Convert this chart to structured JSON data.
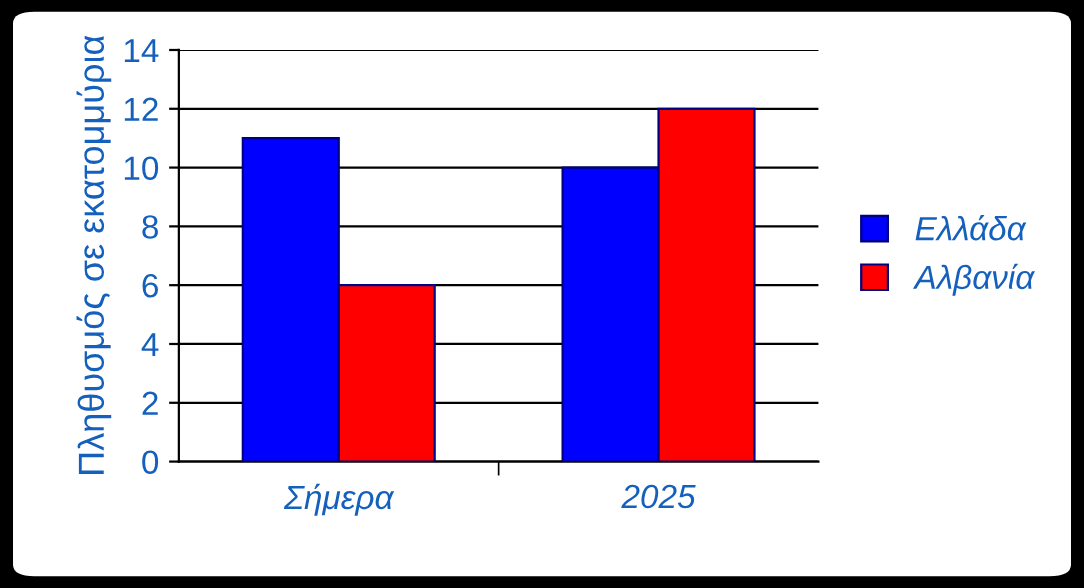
{
  "chart_data": {
    "type": "bar",
    "ylabel": "Πληθυσμός σε εκατομμύρια",
    "categories": [
      "Σήμερα",
      "2025"
    ],
    "series": [
      {
        "name": "Ελλάδα",
        "color": "#0000ff",
        "values": [
          11,
          10
        ]
      },
      {
        "name": "Αλβανία",
        "color": "#ff0000",
        "values": [
          6,
          12
        ]
      }
    ],
    "ylim": [
      0,
      14
    ],
    "yticks": [
      0,
      2,
      4,
      6,
      8,
      10,
      12,
      14
    ],
    "grid": "y",
    "legend": "right"
  }
}
